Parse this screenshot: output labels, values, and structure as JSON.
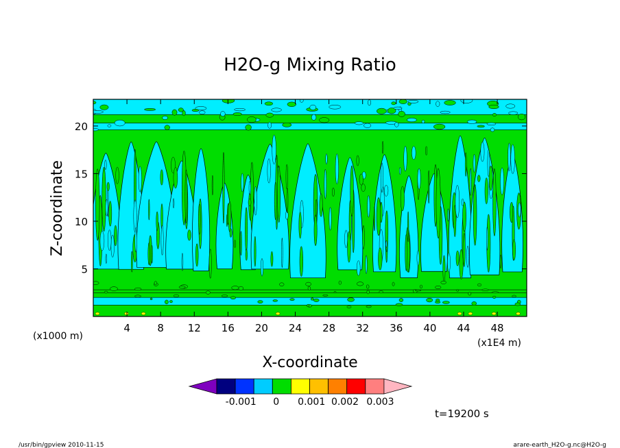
{
  "chart_data": {
    "type": "heatmap",
    "title": "H2O-g Mixing Ratio",
    "xlabel": "X-coordinate",
    "ylabel": "Z-coordinate",
    "x_unit_left": "(x1000 m)",
    "x_unit_right": "(x1E4 m)",
    "xlim": [
      0,
      51.5
    ],
    "ylim": [
      0,
      22.8
    ],
    "x_ticks": [
      4,
      8,
      12,
      16,
      20,
      24,
      28,
      32,
      36,
      40,
      44,
      48
    ],
    "y_ticks": [
      5,
      10,
      15,
      20
    ],
    "legend": {
      "placement": "bottom",
      "colors": [
        "#7f00bf",
        "#00007f",
        "#0033ff",
        "#00ccff",
        "#00dd00",
        "#ffff00",
        "#ffc000",
        "#ff8000",
        "#ff0000",
        "#ff7f7f",
        "#ffb6c1"
      ],
      "labels": [
        "-0.001",
        "0",
        "0.001",
        "0.002",
        "0.003"
      ]
    },
    "annotation": "t=19200 s"
  },
  "footer": {
    "left": "/usr/bin/gpview   2010-11-15",
    "right": "arare-earth_H2O-g.nc@H2O-g"
  },
  "colors": {
    "background": "#ffffff",
    "field_green": "#00dd00",
    "field_cyan": "#00eeff",
    "contour": "#000000"
  }
}
